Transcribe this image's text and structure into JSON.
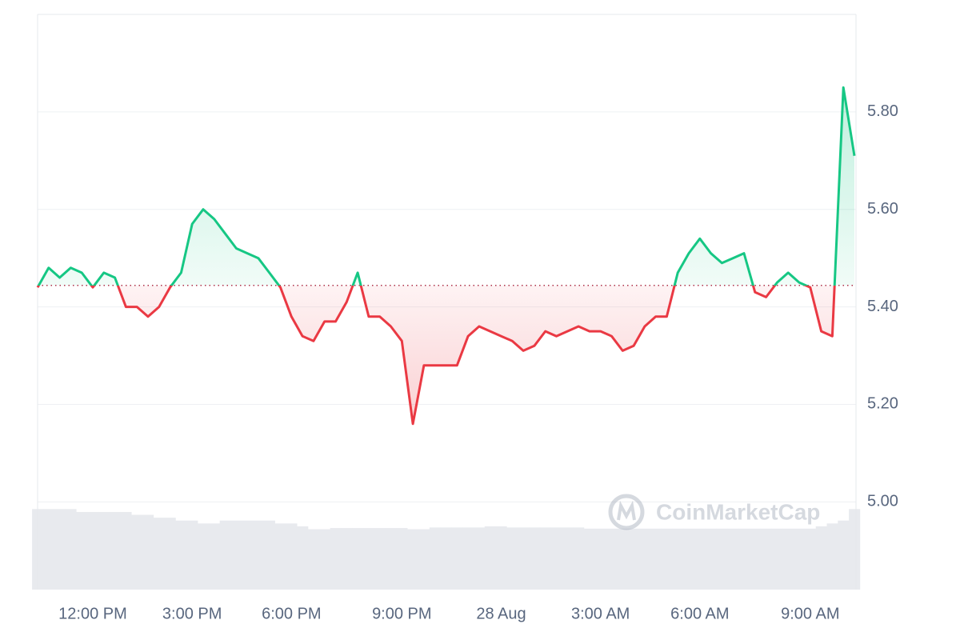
{
  "chart_data": {
    "type": "line",
    "watermark": "CoinMarketCap",
    "categories": [
      null,
      null,
      null,
      null,
      null,
      "12:00 PM",
      null,
      null,
      null,
      null,
      null,
      null,
      null,
      null,
      "3:00 PM",
      null,
      null,
      null,
      null,
      null,
      null,
      null,
      null,
      "6:00 PM",
      null,
      null,
      null,
      null,
      null,
      null,
      null,
      null,
      null,
      "9:00 PM",
      null,
      null,
      null,
      null,
      null,
      null,
      null,
      null,
      "28 Aug",
      null,
      null,
      null,
      null,
      null,
      null,
      null,
      null,
      "3:00 AM",
      null,
      null,
      null,
      null,
      null,
      null,
      null,
      null,
      "6:00 AM",
      null,
      null,
      null,
      null,
      null,
      null,
      null,
      null,
      null,
      "9:00 AM",
      null,
      null,
      null,
      null
    ],
    "series": [
      {
        "name": "Price",
        "color_up": "#16c784",
        "color_down": "#ea3943",
        "values": [
          5.44,
          5.48,
          5.46,
          5.48,
          5.47,
          5.44,
          5.47,
          5.46,
          5.4,
          5.4,
          5.38,
          5.4,
          5.44,
          5.47,
          5.57,
          5.6,
          5.58,
          5.55,
          5.52,
          5.51,
          5.5,
          5.47,
          5.44,
          5.38,
          5.34,
          5.33,
          5.37,
          5.37,
          5.41,
          5.47,
          5.38,
          5.38,
          5.36,
          5.33,
          5.16,
          5.28,
          5.28,
          5.28,
          5.28,
          5.34,
          5.36,
          5.35,
          5.34,
          5.33,
          5.31,
          5.32,
          5.35,
          5.34,
          5.35,
          5.36,
          5.35,
          5.35,
          5.34,
          5.31,
          5.32,
          5.36,
          5.38,
          5.38,
          5.47,
          5.51,
          5.54,
          5.51,
          5.49,
          5.5,
          5.51,
          5.43,
          5.42,
          5.45,
          5.47,
          5.45,
          5.44,
          5.35,
          5.34,
          5.85,
          5.71
        ]
      },
      {
        "name": "Volume",
        "axis": "y2",
        "color": "#e8eaee",
        "values": [
          14,
          14,
          14,
          14,
          13.5,
          13.5,
          13.5,
          13.5,
          13.5,
          13,
          13,
          12.5,
          12.5,
          12,
          12,
          11.5,
          11.5,
          12,
          12,
          12,
          12,
          12,
          11.5,
          11.5,
          11,
          10.5,
          10.5,
          10.7,
          10.7,
          10.7,
          10.7,
          10.7,
          10.7,
          10.7,
          10.5,
          10.5,
          10.8,
          10.8,
          10.8,
          10.8,
          10.8,
          11,
          11,
          10.8,
          10.8,
          10.8,
          10.8,
          10.8,
          10.8,
          10.8,
          10.6,
          10.6,
          10.6,
          10.6,
          10.6,
          10.6,
          10.6,
          10.6,
          10.6,
          10.6,
          10.6,
          10.6,
          10.6,
          10.6,
          10.6,
          10.6,
          10.6,
          10.6,
          10.6,
          10.6,
          10.6,
          11,
          11.5,
          12,
          14
        ]
      }
    ],
    "baseline": 5.444,
    "ylim": [
      4.82,
      6.0
    ],
    "yticks": [
      {
        "value": 5,
        "label": "5.00"
      },
      {
        "value": 5.2,
        "label": "5.20"
      },
      {
        "value": 5.4,
        "label": "5.40"
      },
      {
        "value": 5.6,
        "label": "5.60"
      },
      {
        "value": 5.8,
        "label": "5.80"
      }
    ],
    "y2lim": [
      0,
      100
    ],
    "grid": true
  }
}
